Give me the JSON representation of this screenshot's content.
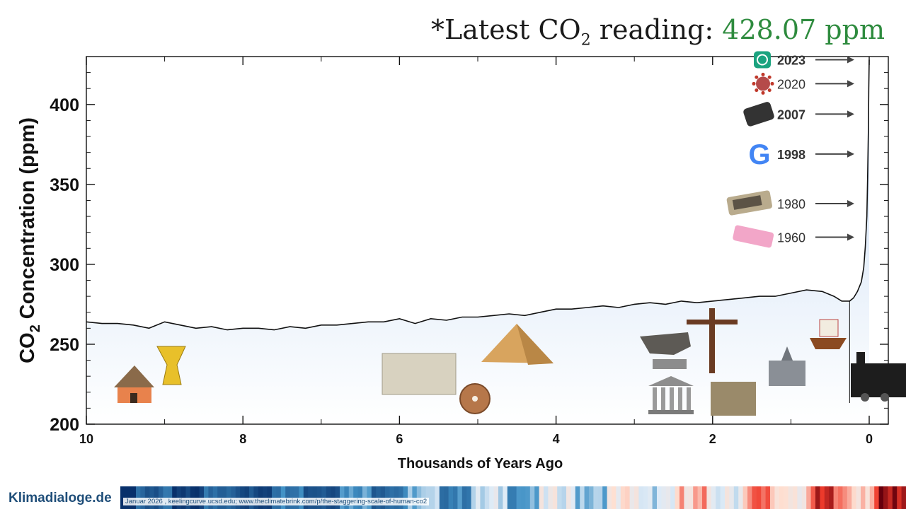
{
  "header": {
    "prefix": "*Latest CO",
    "sub": "2",
    "suffix": " reading: ",
    "value": "428.07 ppm",
    "value_color": "#2e8b3e"
  },
  "footer": {
    "brand": "Klimadialoge.de",
    "source": "Januar 2026 , keelingcurve.ucsd.edu; www.theclimatebrink.com/p/the-staggering-scale-of-human-co2"
  },
  "chart_data": {
    "type": "area",
    "ylabel_main": "CO",
    "ylabel_sub": "2",
    "ylabel_rest": " Concentration (ppm)",
    "xlabel": "Thousands of Years Ago",
    "xlim": [
      10,
      0
    ],
    "ylim": [
      200,
      430
    ],
    "x_ticks": [
      10,
      8,
      6,
      4,
      2,
      0
    ],
    "y_ticks": [
      200,
      250,
      300,
      350,
      400
    ],
    "fill_color": "#c8dcf4",
    "x": [
      10.0,
      9.8,
      9.6,
      9.4,
      9.2,
      9.0,
      8.8,
      8.6,
      8.4,
      8.2,
      8.0,
      7.8,
      7.6,
      7.4,
      7.2,
      7.0,
      6.8,
      6.6,
      6.4,
      6.2,
      6.0,
      5.8,
      5.6,
      5.4,
      5.2,
      5.0,
      4.8,
      4.6,
      4.4,
      4.2,
      4.0,
      3.8,
      3.6,
      3.4,
      3.2,
      3.0,
      2.8,
      2.6,
      2.4,
      2.2,
      2.0,
      1.8,
      1.6,
      1.4,
      1.2,
      1.0,
      0.8,
      0.6,
      0.45,
      0.35,
      0.25,
      0.2,
      0.15,
      0.1,
      0.07,
      0.05,
      0.03,
      0.02,
      0.01,
      0.005,
      0.0
    ],
    "values": [
      264,
      263,
      263,
      262,
      260,
      264,
      262,
      260,
      261,
      259,
      260,
      260,
      259,
      261,
      260,
      262,
      262,
      263,
      264,
      264,
      266,
      263,
      266,
      265,
      267,
      267,
      268,
      269,
      268,
      270,
      272,
      272,
      273,
      274,
      273,
      275,
      276,
      275,
      277,
      276,
      277,
      278,
      279,
      280,
      280,
      282,
      284,
      283,
      280,
      277,
      277,
      279,
      283,
      289,
      298,
      311,
      330,
      355,
      385,
      410,
      428
    ],
    "annotations": [
      {
        "label": "2023",
        "y": 428
      },
      {
        "label": "2020",
        "y": 413
      },
      {
        "label": "2007",
        "y": 394
      },
      {
        "label": "1998",
        "y": 369
      },
      {
        "label": "1980",
        "y": 338
      },
      {
        "label": "1960",
        "y": 317
      }
    ]
  }
}
